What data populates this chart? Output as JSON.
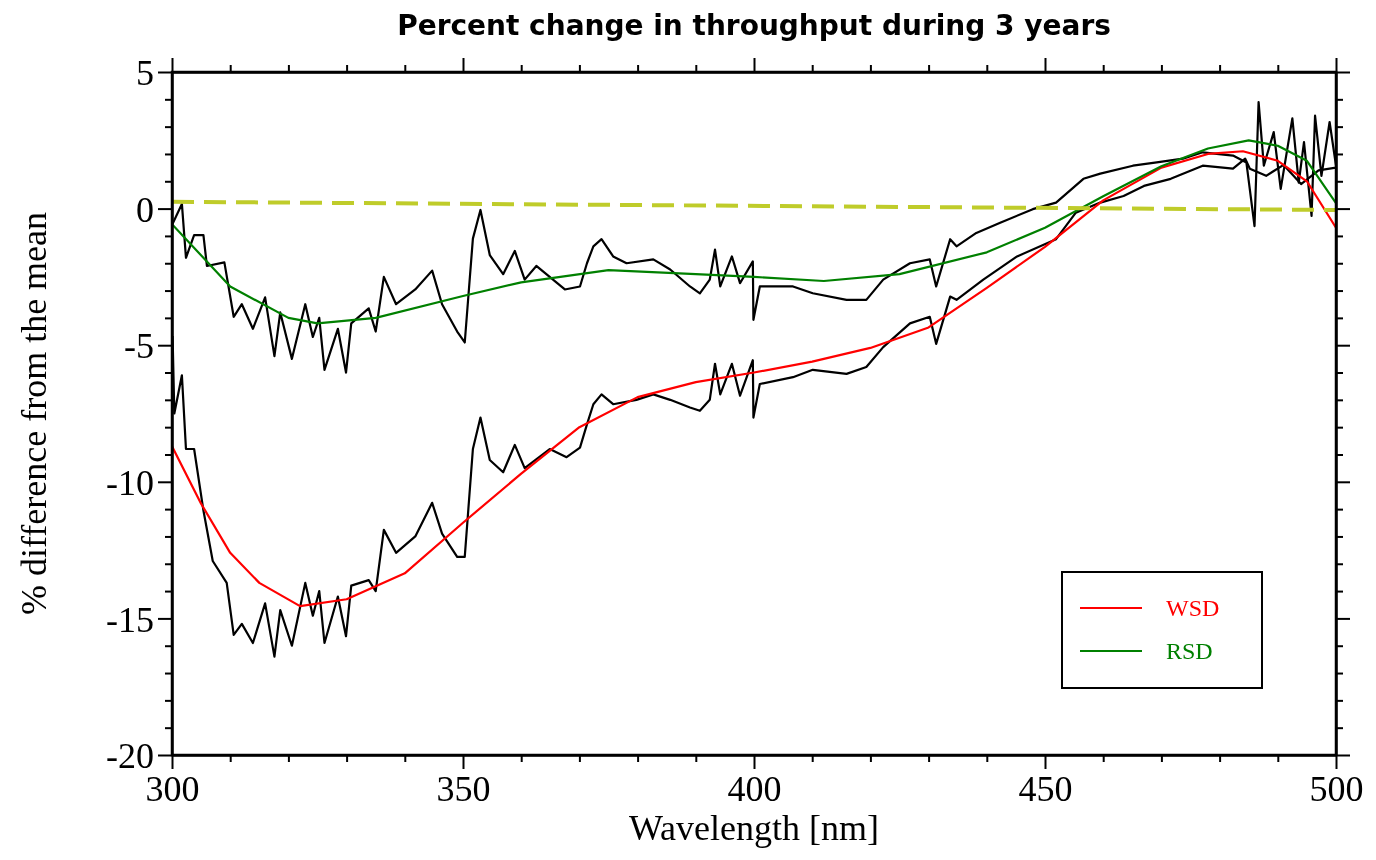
{
  "chart_data": {
    "type": "line",
    "title": "Percent change in throughput during 3 years",
    "xlabel": "Wavelength [nm]",
    "ylabel": "% difference from the mean",
    "xlim": [
      300,
      500
    ],
    "ylim": [
      -20,
      5
    ],
    "xticks": [
      300,
      {
        "value": 310,
        "label": null
      },
      {
        "value": 320,
        "label": null
      },
      {
        "value": 330,
        "label": null
      },
      {
        "value": 340,
        "label": null
      },
      350,
      {
        "value": 360,
        "label": null
      },
      {
        "value": 370,
        "label": null
      },
      {
        "value": 380,
        "label": null
      },
      {
        "value": 390,
        "label": null
      },
      400,
      {
        "value": 410,
        "label": null
      },
      {
        "value": 420,
        "label": null
      },
      {
        "value": 430,
        "label": null
      },
      {
        "value": 440,
        "label": null
      },
      450,
      {
        "value": 460,
        "label": null
      },
      {
        "value": 470,
        "label": null
      },
      {
        "value": 480,
        "label": null
      },
      {
        "value": 490,
        "label": null
      },
      500
    ],
    "yticks": [
      -20,
      {
        "value": -19,
        "label": null
      },
      {
        "value": -18,
        "label": null
      },
      {
        "value": -17,
        "label": null
      },
      {
        "value": -16,
        "label": null
      },
      -15,
      {
        "value": -14,
        "label": null
      },
      {
        "value": -13,
        "label": null
      },
      {
        "value": -12,
        "label": null
      },
      {
        "value": -11,
        "label": null
      },
      -10,
      {
        "value": -9,
        "label": null
      },
      {
        "value": -8,
        "label": null
      },
      {
        "value": -7,
        "label": null
      },
      {
        "value": -6,
        "label": null
      },
      -5,
      {
        "value": -4,
        "label": null
      },
      {
        "value": -3,
        "label": null
      },
      {
        "value": -2,
        "label": null
      },
      {
        "value": -1,
        "label": null
      },
      0,
      {
        "value": 1,
        "label": null
      },
      {
        "value": 2,
        "label": null
      },
      {
        "value": 3,
        "label": null
      },
      {
        "value": 4,
        "label": null
      },
      5
    ],
    "grid": false,
    "legend": "bottom right",
    "line_style": "solid",
    "marker": "none",
    "series": [
      {
        "color": "#000000",
        "x": [
          300.1,
          301.7,
          302.4,
          303.8,
          305.4,
          306,
          309,
          310.6,
          312,
          313.9,
          316,
          317.6,
          318.6,
          320.6,
          322.9,
          324.2,
          325.3,
          326.2,
          328.5,
          329.9,
          330.8,
          333.8,
          335,
          336.4,
          338.5,
          341.8,
          344.7,
          346.4,
          349,
          350.3,
          351.7,
          353,
          354.6,
          356.9,
          358.9,
          360.6,
          362.6,
          367.5,
          370.1,
          371.3,
          372.4,
          373.8,
          375.8,
          378.1,
          382.7,
          385.6,
          389,
          390.7,
          392.4,
          393.3,
          394.2,
          396.2,
          397.6,
          399.8,
          399.9,
          401,
          406.7,
          410.1,
          415.9,
          419.3,
          422.2,
          426.8,
          430.2,
          431.3,
          433.7,
          434.8,
          438.2,
          442.3,
          447.9,
          451.9,
          456.6,
          459.5,
          465.1,
          469.2,
          473.7,
          477.1,
          482.3,
          484.6,
          486,
          486.7,
          487.6,
          489.3,
          490.5,
          492.5,
          493.6,
          494.5,
          495.8,
          496.4,
          497.5,
          498.9,
          500
        ],
        "values": [
          -0.56,
          0.17,
          -1.8,
          -0.97,
          -0.97,
          -2.1,
          -1.97,
          -3.96,
          -3.5,
          -4.4,
          -3.25,
          -5.4,
          -3.8,
          -5.5,
          -3.5,
          -4.7,
          -4.0,
          -5.9,
          -4.4,
          -6.0,
          -4.2,
          -3.65,
          -4.5,
          -2.5,
          -3.5,
          -2.96,
          -2.27,
          -3.5,
          -4.5,
          -4.9,
          -1.1,
          -0.05,
          -1.7,
          -2.4,
          -1.55,
          -2.6,
          -2.1,
          -2.96,
          -2.85,
          -2.0,
          -1.38,
          -1.12,
          -1.75,
          -2.0,
          -1.86,
          -2.23,
          -2.85,
          -3.1,
          -2.6,
          -1.5,
          -2.85,
          -1.75,
          -2.73,
          -1.93,
          -4.07,
          -2.85,
          -2.85,
          -3.1,
          -3.34,
          -3.34,
          -2.6,
          -2.0,
          -1.86,
          -2.85,
          -1.12,
          -1.38,
          -0.89,
          -0.52,
          -0.02,
          0.22,
          1.09,
          1.28,
          1.57,
          1.69,
          1.83,
          2.06,
          1.94,
          1.69,
          -0.64,
          3.9,
          1.57,
          2.8,
          0.72,
          3.3,
          0.95,
          2.43,
          -0.27,
          3.4,
          1.2,
          3.17,
          1.57
        ]
      },
      {
        "color": "#000000",
        "x": [
          300.1,
          300.4,
          301.7,
          302.4,
          303.8,
          305.4,
          307,
          309.4,
          310.6,
          312,
          313.9,
          316,
          317.6,
          318.6,
          320.6,
          322.9,
          324.2,
          325.3,
          326.2,
          328.5,
          329.9,
          330.8,
          333.8,
          335,
          336.4,
          338.5,
          341.8,
          344.7,
          346.4,
          349,
          350.3,
          351.7,
          353,
          354.6,
          356.9,
          358.9,
          360.6,
          364.9,
          367.8,
          370.1,
          371.3,
          372.4,
          373.8,
          375.8,
          379.8,
          382.7,
          385.6,
          389,
          390.7,
          392.4,
          393.3,
          394.2,
          396.2,
          397.6,
          399.8,
          399.9,
          401,
          406.7,
          410.1,
          415.9,
          419.3,
          422.2,
          426.8,
          430.2,
          431.3,
          433.7,
          434.8,
          439.4,
          445.2,
          451.9,
          455.3,
          459.5,
          463.5,
          467,
          471.6,
          477.1,
          482.3,
          484.4,
          485.2,
          488,
          491,
          494,
          497,
          500
        ],
        "values": [
          -4.66,
          -7.5,
          -6.1,
          -8.8,
          -8.8,
          -11.05,
          -12.9,
          -13.7,
          -15.6,
          -15.2,
          -15.9,
          -14.45,
          -16.4,
          -14.7,
          -16.0,
          -13.7,
          -14.9,
          -14.0,
          -15.9,
          -14.2,
          -15.65,
          -13.8,
          -13.6,
          -14.0,
          -11.76,
          -12.6,
          -12.0,
          -10.77,
          -11.9,
          -12.75,
          -12.75,
          -8.8,
          -7.65,
          -9.2,
          -9.65,
          -8.65,
          -9.5,
          -8.8,
          -9.1,
          -8.75,
          -7.9,
          -7.16,
          -6.8,
          -7.16,
          -7.0,
          -6.8,
          -7.0,
          -7.28,
          -7.4,
          -7.0,
          -5.68,
          -6.8,
          -5.68,
          -6.85,
          -5.55,
          -7.65,
          -6.42,
          -6.17,
          -5.9,
          -6.05,
          -5.8,
          -5.07,
          -4.2,
          -3.96,
          -4.95,
          -3.22,
          -3.34,
          -2.6,
          -1.75,
          -1.12,
          -0.15,
          0.22,
          0.46,
          0.83,
          1.09,
          1.57,
          1.46,
          1.83,
          1.46,
          1.2,
          1.6,
          0.9,
          1.4,
          1.5
        ]
      },
      {
        "name": "WSD",
        "color": "#ff0000",
        "x": [
          300,
          305,
          310,
          315,
          322,
          330,
          340,
          350,
          360,
          370,
          380,
          390,
          400,
          410,
          420,
          430,
          440,
          450,
          460,
          470,
          478,
          484,
          490,
          495,
          500
        ],
        "values": [
          -8.7,
          -10.8,
          -12.6,
          -13.7,
          -14.55,
          -14.3,
          -13.35,
          -11.5,
          -9.7,
          -8.0,
          -6.9,
          -6.35,
          -6.0,
          -5.6,
          -5.1,
          -4.35,
          -2.9,
          -1.4,
          0.3,
          1.5,
          2.0,
          2.1,
          1.75,
          1.0,
          -0.7
        ]
      },
      {
        "name": "RSD",
        "color": "#008000",
        "x": [
          300,
          310,
          320,
          325,
          335,
          350,
          360,
          375,
          390,
          400,
          412,
          425,
          440,
          450,
          460,
          470,
          478,
          485,
          490,
          495,
          500
        ],
        "values": [
          -0.57,
          -2.85,
          -4.0,
          -4.2,
          -4.0,
          -3.2,
          -2.7,
          -2.25,
          -2.4,
          -2.5,
          -2.65,
          -2.4,
          -1.6,
          -0.7,
          0.45,
          1.55,
          2.2,
          2.5,
          2.3,
          1.75,
          0.2
        ]
      },
      {
        "color": "#bfcc2a",
        "line_style": "dashed",
        "x": [
          300,
          500
        ],
        "values": [
          0.25,
          -0.05
        ]
      }
    ]
  }
}
